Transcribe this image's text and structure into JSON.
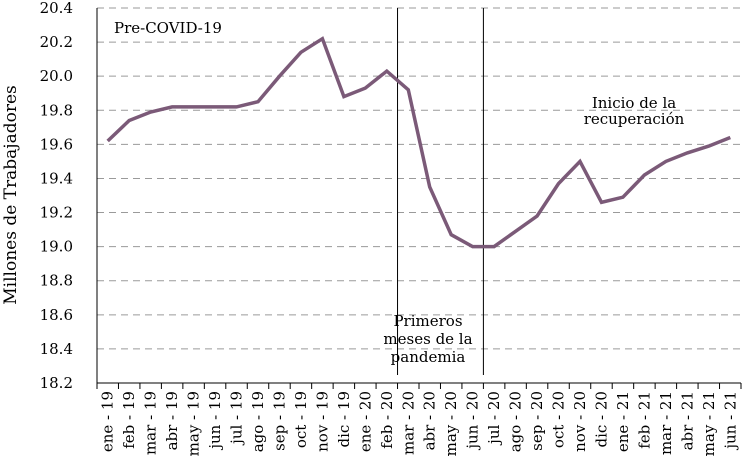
{
  "chart_data": {
    "type": "line",
    "title": "",
    "xlabel": "",
    "ylabel": "Millones de Trabajadores",
    "ylim": [
      18.2,
      20.4
    ],
    "yticks": [
      18.2,
      18.4,
      18.6,
      18.8,
      19.0,
      19.2,
      19.4,
      19.6,
      19.8,
      20.0,
      20.2,
      20.4
    ],
    "ytick_labels": [
      "18.2",
      "18.4",
      "18.6",
      "18.8",
      "19.0",
      "19.2",
      "19.4",
      "19.6",
      "19.8",
      "20.0",
      "20.2",
      "20.4"
    ],
    "grid": "horizontal dashed",
    "line_color": "#7b5a78",
    "categories": [
      "ene - 19",
      "feb - 19",
      "mar - 19",
      "abr - 19",
      "may - 19",
      "jun - 19",
      "jul - 19",
      "ago - 19",
      "sep - 19",
      "oct - 19",
      "nov - 19",
      "dic - 19",
      "ene - 20",
      "feb - 20",
      "mar - 20",
      "abr - 20",
      "may - 20",
      "jun - 20",
      "jul - 20",
      "ago - 20",
      "sep - 20",
      "oct - 20",
      "nov - 20",
      "dic - 20",
      "ene - 21",
      "feb - 21",
      "mar - 21",
      "abr - 21",
      "may - 21",
      "jun - 21"
    ],
    "series": [
      {
        "name": "Trabajadores",
        "values": [
          19.62,
          19.74,
          19.79,
          19.82,
          19.82,
          19.82,
          19.82,
          19.85,
          20.0,
          20.14,
          20.22,
          19.88,
          19.93,
          20.03,
          19.92,
          19.35,
          19.07,
          19.0,
          19.0,
          19.09,
          19.18,
          19.37,
          19.5,
          19.26,
          19.29,
          19.42,
          19.5,
          19.55,
          19.59,
          19.64
        ]
      }
    ],
    "vlines": [
      {
        "after_category": "feb - 20"
      },
      {
        "after_category": "jun - 20"
      }
    ],
    "annotations": [
      {
        "id": "pre",
        "lines": [
          "Pre-COVID-19"
        ]
      },
      {
        "id": "pandemia",
        "lines": [
          "Primeros",
          "meses de la",
          "pandemia"
        ]
      },
      {
        "id": "recuperacion",
        "lines": [
          "Inicio de la",
          "recuperación"
        ]
      }
    ]
  }
}
